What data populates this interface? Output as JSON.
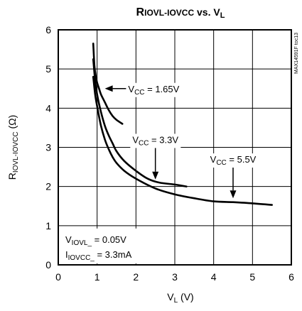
{
  "chart_data": {
    "type": "line",
    "title": {
      "main": "R",
      "main_sub": "IOVL-IOVCC",
      "vs": " vs. V",
      "vs_sub": "L"
    },
    "xlabel": {
      "main": "V",
      "sub": "L",
      "unit": " (V)"
    },
    "ylabel": {
      "main": "R",
      "sub": "IOVL-IOVCC",
      "unit": " (Ω)"
    },
    "xlim": [
      0,
      6
    ],
    "ylim": [
      0,
      6
    ],
    "x_ticks": [
      0,
      1,
      2,
      3,
      4,
      5,
      6
    ],
    "y_ticks": [
      0,
      1,
      2,
      3,
      4,
      5,
      6
    ],
    "x_tick_labels": [
      "0",
      "1",
      "2",
      "3",
      "4",
      "5",
      "6"
    ],
    "y_tick_labels": [
      "0",
      "1",
      "2",
      "3",
      "4",
      "5",
      "6"
    ],
    "grid": true,
    "legend": "none",
    "series": [
      {
        "name": "VCC = 1.65V",
        "x": [
          0.9,
          0.93,
          0.96,
          1.0,
          1.05,
          1.1,
          1.2,
          1.3,
          1.4,
          1.5,
          1.65
        ],
        "y": [
          5.65,
          5.1,
          4.85,
          4.65,
          4.5,
          4.35,
          4.15,
          3.95,
          3.8,
          3.7,
          3.6
        ]
      },
      {
        "name": "VCC = 3.3V",
        "x": [
          0.9,
          0.95,
          1.0,
          1.1,
          1.2,
          1.3,
          1.4,
          1.5,
          1.7,
          2.0,
          2.3,
          2.6,
          3.0,
          3.3
        ],
        "y": [
          5.25,
          4.7,
          4.35,
          3.9,
          3.55,
          3.3,
          3.1,
          2.9,
          2.65,
          2.4,
          2.2,
          2.1,
          2.05,
          2.0
        ]
      },
      {
        "name": "VCC = 5.5V",
        "x": [
          0.9,
          0.95,
          1.0,
          1.1,
          1.2,
          1.3,
          1.4,
          1.5,
          1.7,
          2.0,
          2.5,
          3.0,
          3.5,
          4.0,
          4.5,
          5.0,
          5.5
        ],
        "y": [
          4.8,
          4.35,
          4.05,
          3.55,
          3.2,
          2.95,
          2.75,
          2.6,
          2.4,
          2.2,
          1.95,
          1.8,
          1.7,
          1.62,
          1.6,
          1.57,
          1.53
        ]
      }
    ],
    "annotations": [
      {
        "id": "vcc165",
        "v": "V",
        "sub": "CC",
        "rest": " = 1.65V",
        "text_x": 1.8,
        "text_y": 4.5,
        "arrow_from": [
          1.75,
          4.5
        ],
        "arrow_to": [
          1.2,
          4.5
        ],
        "anchor": "start"
      },
      {
        "id": "vcc33",
        "v": "V",
        "sub": "CC",
        "rest": " = 3.3V",
        "text_x": 2.5,
        "text_y": 3.2,
        "arrow_from": [
          2.5,
          3.05
        ],
        "arrow_to": [
          2.5,
          2.18
        ],
        "anchor": "middle"
      },
      {
        "id": "vcc55",
        "v": "V",
        "sub": "CC",
        "rest": " = 5.5V",
        "text_x": 4.5,
        "text_y": 2.7,
        "arrow_from": [
          4.5,
          2.55
        ],
        "arrow_to": [
          4.5,
          1.7
        ],
        "anchor": "middle"
      }
    ],
    "conditions": [
      {
        "main": "V",
        "sub": "IOVL_",
        "rest": " = 0.05V"
      },
      {
        "main": "I",
        "sub": "IOVCC_",
        "rest": " = 3.3mA"
      }
    ],
    "figure_id": "MAX14591F toc13"
  }
}
